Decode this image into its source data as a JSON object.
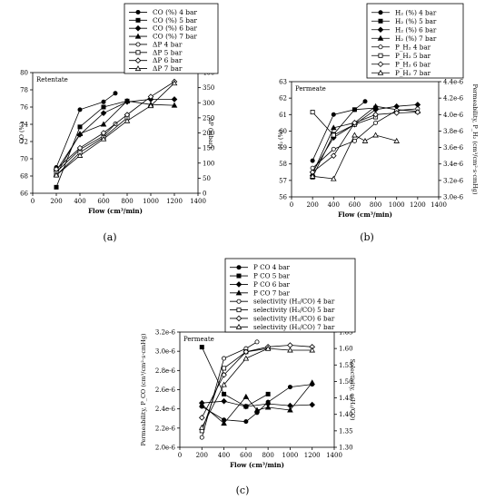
{
  "chart_data": [
    {
      "type": "line",
      "panel_label": "(a)",
      "annotation": "Retentate",
      "xlabel": "Flow (cm³/min)",
      "ylabel": "CO (%)",
      "y2label": "ΔP (mbar)",
      "xlim": [
        0,
        1400
      ],
      "ylim": [
        66,
        80
      ],
      "y2lim": [
        0,
        400
      ],
      "xticks": [
        "0",
        "200",
        "400",
        "600",
        "800",
        "1000",
        "1200",
        "1400"
      ],
      "yticks": [
        "66",
        "68",
        "70",
        "72",
        "74",
        "76",
        "78",
        "80"
      ],
      "y2ticks": [
        "0",
        "50",
        "100",
        "150",
        "200",
        "250",
        "300",
        "350",
        "400"
      ],
      "legend_position": "top-center",
      "series": [
        {
          "name": "CO (%) 4 bar",
          "axis": "left",
          "marker": "filled-circle",
          "x": [
            200,
            400,
            600,
            700
          ],
          "y": [
            69.0,
            75.7,
            76.6,
            77.6
          ]
        },
        {
          "name": "CO (%) 5 bar",
          "axis": "left",
          "marker": "filled-square",
          "x": [
            200,
            400,
            600,
            800
          ],
          "y": [
            66.7,
            73.7,
            76.0,
            76.7
          ]
        },
        {
          "name": "CO (%) 6 bar",
          "axis": "left",
          "marker": "filled-diamond",
          "x": [
            200,
            400,
            600,
            800,
            1000,
            1200
          ],
          "y": [
            68.6,
            72.8,
            75.3,
            76.6,
            76.9,
            76.9
          ]
        },
        {
          "name": "CO (%) 7 bar",
          "axis": "left",
          "marker": "filled-triangle",
          "x": [
            200,
            400,
            600,
            800,
            1000,
            1200
          ],
          "y": [
            68.2,
            72.9,
            74.0,
            76.7,
            76.3,
            76.2
          ]
        },
        {
          "name": "ΔP 4 bar",
          "axis": "right",
          "marker": "open-circle",
          "x": [
            200,
            400,
            600,
            700
          ],
          "y": [
            70,
            145,
            190,
            230
          ]
        },
        {
          "name": "ΔP 5 bar",
          "axis": "right",
          "marker": "open-square",
          "x": [
            200,
            400,
            600,
            800
          ],
          "y": [
            60,
            135,
            185,
            250
          ]
        },
        {
          "name": "ΔP 6 bar",
          "axis": "right",
          "marker": "open-diamond",
          "x": [
            200,
            400,
            600,
            800,
            1000,
            1200
          ],
          "y": [
            80,
            150,
            200,
            260,
            320,
            370
          ]
        },
        {
          "name": "ΔP 7 bar",
          "axis": "right",
          "marker": "open-triangle",
          "x": [
            200,
            400,
            600,
            800,
            1000,
            1200
          ],
          "y": [
            60,
            125,
            180,
            240,
            290,
            365
          ]
        }
      ]
    },
    {
      "type": "line",
      "panel_label": "(b)",
      "annotation": "Permeate",
      "xlabel": "Flow (cm³/min)",
      "ylabel": "H₂ (%)",
      "y2label": "Permeability, P_H₂ (cm³/cm²·s·cmHg)",
      "xlim": [
        0,
        1400
      ],
      "ylim": [
        56,
        63
      ],
      "y2lim": [
        3e-06,
        4.4e-06
      ],
      "xticks": [
        "0",
        "200",
        "400",
        "600",
        "800",
        "1000",
        "1200",
        "1400"
      ],
      "yticks": [
        "56",
        "57",
        "58",
        "59",
        "60",
        "61",
        "62",
        "63"
      ],
      "y2ticks": [
        "3.0e-6",
        "3.2e-6",
        "3.4e-6",
        "3.6e-6",
        "3.8e-6",
        "4.0e-6",
        "4.2e-6",
        "4.4e-6"
      ],
      "legend_position": "top-center",
      "legend_labels": [
        "H₂ (%) 4 bar",
        "H₂ (%) 5 bar",
        "H₂ (%) 6 bar",
        "H₂ (%) 7 bar",
        "P_H₂ 4 bar",
        "P_H₂ 5 bar",
        "P_H₂ 6 bar",
        "P_H₂ 7 bar"
      ],
      "series": [
        {
          "name": "H₂ (%) 4 bar",
          "axis": "left",
          "marker": "filled-circle",
          "x": [
            200,
            400,
            600,
            700
          ],
          "y": [
            58.2,
            61.0,
            61.3,
            61.8
          ]
        },
        {
          "name": "H₂ (%) 5 bar",
          "axis": "left",
          "marker": "filled-square",
          "x": [
            200,
            400,
            600,
            800
          ],
          "y": [
            57.2,
            59.8,
            61.3,
            61.4
          ]
        },
        {
          "name": "H₂ (%) 6 bar",
          "axis": "left",
          "marker": "filled-diamond",
          "x": [
            200,
            400,
            600,
            800,
            1000,
            1200
          ],
          "y": [
            57.5,
            59.6,
            60.4,
            61.3,
            61.5,
            61.6
          ]
        },
        {
          "name": "H₂ (%) 7 bar",
          "axis": "left",
          "marker": "filled-triangle",
          "x": [
            200,
            400,
            600,
            800,
            1000,
            1200
          ],
          "y": [
            57.4,
            60.2,
            60.5,
            61.5,
            61.3,
            61.2
          ]
        },
        {
          "name": "P_H₂ 4 bar",
          "axis": "right",
          "marker": "open-circle",
          "x": [
            200,
            400,
            600,
            800,
            1000,
            1200
          ],
          "y": [
            3.35e-06,
            3.58e-06,
            3.68e-06,
            3.9e-06,
            4.05e-06,
            4.07e-06
          ]
        },
        {
          "name": "P_H₂ 5 bar",
          "axis": "right",
          "marker": "open-square",
          "x": [
            200,
            400,
            600,
            800
          ],
          "y": [
            4.03e-06,
            3.75e-06,
            3.88e-06,
            3.97e-06
          ]
        },
        {
          "name": "P_H₂ 6 bar",
          "axis": "right",
          "marker": "open-diamond",
          "x": [
            200,
            400,
            600,
            800,
            1000,
            1200
          ],
          "y": [
            3.3e-06,
            3.5e-06,
            3.9e-06,
            4e-06,
            4.02e-06,
            4.03e-06
          ]
        },
        {
          "name": "P_H₂ 7 bar",
          "axis": "right",
          "marker": "open-triangle",
          "x": [
            200,
            400,
            600,
            700,
            800,
            1000
          ],
          "y": [
            3.25e-06,
            3.22e-06,
            3.75e-06,
            3.68e-06,
            3.75e-06,
            3.68e-06
          ]
        }
      ]
    },
    {
      "type": "line",
      "panel_label": "(c)",
      "annotation": "Permeate",
      "xlabel": "Flow (cm³/min)",
      "ylabel": "Permeability, P_CO (cm³/cm²·s·cmHg)",
      "y2label": "Selectivity, α(H₂/CO)",
      "xlim": [
        0,
        1400
      ],
      "ylim": [
        1.9e-06,
        3.2e-06
      ],
      "y2lim": [
        1.3,
        1.65
      ],
      "xticks": [
        "0",
        "200",
        "400",
        "600",
        "800",
        "1000",
        "1200",
        "1400"
      ],
      "yticks": [
        "2.0e-6",
        "2.2e-6",
        "2.4e-6",
        "2.6e-6",
        "2.8e-6",
        "3.0e-6",
        "3.2e-6"
      ],
      "y2ticks": [
        "1.30",
        "1.35",
        "1.40",
        "1.45",
        "1.50",
        "1.55",
        "1.60",
        "1.65"
      ],
      "legend_position": "top-center",
      "series": [
        {
          "name": "P CO 4 bar",
          "axis": "left",
          "marker": "filled-circle",
          "x": [
            200,
            400,
            600,
            700,
            800,
            1000,
            1200
          ],
          "y": [
            2.36e-06,
            2.21e-06,
            2.19e-06,
            2.29e-06,
            2.41e-06,
            2.58e-06,
            2.61e-06
          ]
        },
        {
          "name": "P CO 5 bar",
          "axis": "left",
          "marker": "filled-square",
          "x": [
            200,
            400,
            600,
            800
          ],
          "y": [
            3.03e-06,
            2.5e-06,
            2.36e-06,
            2.5e-06
          ]
        },
        {
          "name": "P CO 6 bar",
          "axis": "left",
          "marker": "filled-diamond",
          "x": [
            200,
            400,
            600,
            800,
            1000,
            1200
          ],
          "y": [
            2.4e-06,
            2.42e-06,
            2.36e-06,
            2.39e-06,
            2.37e-06,
            2.38e-06
          ]
        },
        {
          "name": "P CO 7 bar",
          "axis": "left",
          "marker": "filled-triangle",
          "x": [
            200,
            400,
            600,
            700,
            800,
            1000,
            1200
          ],
          "y": [
            2.38e-06,
            2.17e-06,
            2.47e-06,
            2.32e-06,
            2.35e-06,
            2.32e-06,
            2.63e-06
          ]
        },
        {
          "name": "selectivity (H₂/CO) 4 bar",
          "axis": "right",
          "marker": "open-circle",
          "x": [
            200,
            400,
            600,
            700
          ],
          "y": [
            1.33,
            1.57,
            1.6,
            1.62
          ]
        },
        {
          "name": "selectivity (H₂/CO) 5 bar",
          "axis": "right",
          "marker": "open-square",
          "x": [
            200,
            400,
            600,
            800
          ],
          "y": [
            1.35,
            1.54,
            1.59,
            1.6
          ]
        },
        {
          "name": "selectivity (H₂/CO) 6 bar",
          "axis": "right",
          "marker": "open-diamond",
          "x": [
            200,
            400,
            600,
            800,
            1000,
            1200
          ],
          "y": [
            1.39,
            1.52,
            1.59,
            1.605,
            1.61,
            1.605
          ]
        },
        {
          "name": "selectivity (H₂/CO) 7 bar",
          "axis": "right",
          "marker": "open-triangle",
          "x": [
            200,
            400,
            600,
            800,
            1000,
            1200
          ],
          "y": [
            1.36,
            1.49,
            1.57,
            1.6,
            1.595,
            1.595
          ]
        }
      ]
    }
  ]
}
